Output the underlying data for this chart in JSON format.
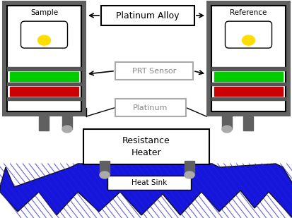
{
  "bg_color": "#ffffff",
  "green_bar_color": "#00cc00",
  "red_bar_color": "#cc0000",
  "dark_gray": "#606060",
  "mid_gray": "#808080",
  "light_gray": "#aaaaaa",
  "yellow_color": "#ffdd00",
  "blue": "#1515dd",
  "blue_stripe": "#0000aa",
  "label_platinum_alloy": "Platinum Alloy",
  "label_prt": "PRT Sensor",
  "label_platinum": "Platinum",
  "label_heater": "Resistance\nHeater",
  "label_heat_sink": "Heat Sink",
  "label_sample": "Sample",
  "label_reference": "Reference"
}
